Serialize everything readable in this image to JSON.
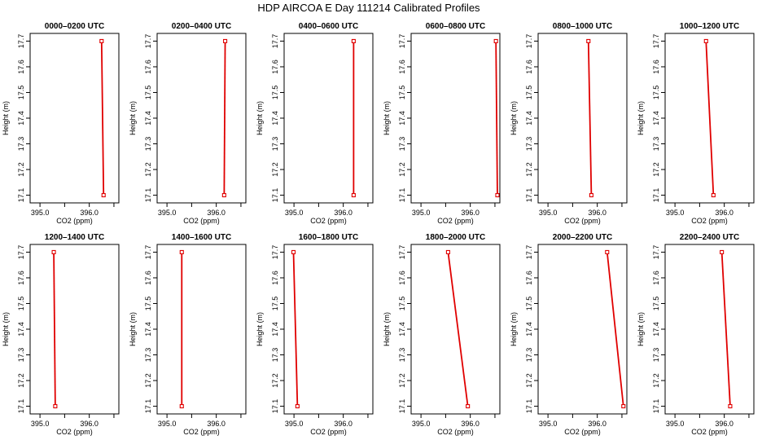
{
  "title": "HDP AIRCOA E  Day 111214  Calibrated Profiles",
  "chart_data": {
    "type": "line",
    "layout": "2x6 panel grid",
    "xlabel": "CO2 (ppm)",
    "ylabel": "Height (m)",
    "xlim": [
      394.8,
      396.6
    ],
    "ylim": [
      17.07,
      17.73
    ],
    "xticks": [
      395.0,
      395.5,
      396.0,
      396.5
    ],
    "xtick_labels": [
      "395.0",
      "",
      "396.0",
      ""
    ],
    "yticks": [
      17.1,
      17.2,
      17.3,
      17.4,
      17.5,
      17.6,
      17.7
    ],
    "ytick_labels": [
      "17.1",
      "17.2",
      "17.3",
      "17.4",
      "17.5",
      "17.6",
      "17.7"
    ],
    "series_color": "#e00000",
    "panels": [
      {
        "title": "0000–0200 UTC",
        "points": [
          {
            "x": 396.25,
            "y": 17.7
          },
          {
            "x": 396.29,
            "y": 17.1
          }
        ]
      },
      {
        "title": "0200–0400 UTC",
        "points": [
          {
            "x": 396.18,
            "y": 17.7
          },
          {
            "x": 396.16,
            "y": 17.1
          }
        ]
      },
      {
        "title": "0400–0600 UTC",
        "points": [
          {
            "x": 396.21,
            "y": 17.7
          },
          {
            "x": 396.21,
            "y": 17.1
          }
        ]
      },
      {
        "title": "0600–0800 UTC",
        "points": [
          {
            "x": 396.52,
            "y": 17.7
          },
          {
            "x": 396.55,
            "y": 17.1
          }
        ]
      },
      {
        "title": "0800–1000 UTC",
        "points": [
          {
            "x": 395.82,
            "y": 17.7
          },
          {
            "x": 395.88,
            "y": 17.1
          }
        ]
      },
      {
        "title": "1000–1200 UTC",
        "points": [
          {
            "x": 395.63,
            "y": 17.7
          },
          {
            "x": 395.78,
            "y": 17.1
          }
        ]
      },
      {
        "title": "1200–1400 UTC",
        "points": [
          {
            "x": 395.28,
            "y": 17.7
          },
          {
            "x": 395.31,
            "y": 17.1
          }
        ]
      },
      {
        "title": "1400–1600 UTC",
        "points": [
          {
            "x": 395.3,
            "y": 17.7
          },
          {
            "x": 395.3,
            "y": 17.1
          }
        ]
      },
      {
        "title": "1600–1800 UTC",
        "points": [
          {
            "x": 394.99,
            "y": 17.7
          },
          {
            "x": 395.07,
            "y": 17.1
          }
        ]
      },
      {
        "title": "1800–2000 UTC",
        "points": [
          {
            "x": 395.55,
            "y": 17.7
          },
          {
            "x": 395.95,
            "y": 17.1
          }
        ]
      },
      {
        "title": "2000–2200 UTC",
        "points": [
          {
            "x": 396.2,
            "y": 17.7
          },
          {
            "x": 396.53,
            "y": 17.1
          }
        ]
      },
      {
        "title": "2200–2400 UTC",
        "points": [
          {
            "x": 395.95,
            "y": 17.7
          },
          {
            "x": 396.12,
            "y": 17.1
          }
        ]
      }
    ]
  }
}
